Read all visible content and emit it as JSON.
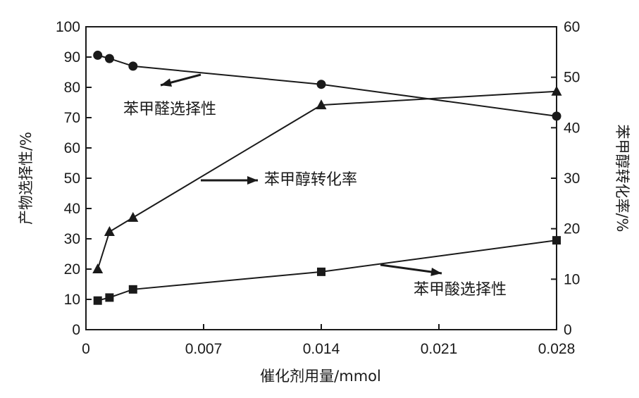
{
  "chart_data": {
    "type": "line",
    "xlabel": "催化剂用量/mmol",
    "ylabel_left": "产物选择性/%",
    "ylabel_right": "苯甲醇转化率/%",
    "x_ticks": [
      "0",
      "0.007",
      "0.014",
      "0.021",
      "0.028"
    ],
    "x_tick_values": [
      0,
      0.007,
      0.014,
      0.021,
      0.028
    ],
    "xlim": [
      0,
      0.028
    ],
    "y_left_ticks": [
      "0",
      "10",
      "20",
      "30",
      "40",
      "50",
      "60",
      "70",
      "80",
      "90",
      "100"
    ],
    "y_left_lim": [
      0,
      100
    ],
    "y_right_ticks": [
      "0",
      "10",
      "20",
      "30",
      "40",
      "50",
      "60"
    ],
    "y_right_lim": [
      0,
      60
    ],
    "grid": false,
    "legend": "none",
    "series": [
      {
        "name": "苯甲醛选择性",
        "axis": "left",
        "marker": "circle",
        "x": [
          0.0007,
          0.0014,
          0.0028,
          0.014,
          0.028
        ],
        "y": [
          90.6,
          89.5,
          87.0,
          81.0,
          70.5
        ]
      },
      {
        "name": "苯甲醇转化率",
        "axis": "right",
        "marker": "triangle",
        "x": [
          0.0007,
          0.0014,
          0.0028,
          0.014,
          0.028
        ],
        "y": [
          12.0,
          19.4,
          22.2,
          44.5,
          47.2
        ]
      },
      {
        "name": "苯甲酸选择性",
        "axis": "left",
        "marker": "square",
        "x": [
          0.0007,
          0.0014,
          0.0028,
          0.014,
          0.028
        ],
        "y": [
          9.6,
          10.6,
          13.3,
          19.1,
          29.5
        ]
      }
    ],
    "annotations": [
      {
        "text": "苯甲醛选择性",
        "series": 0
      },
      {
        "text": "苯甲醇转化率",
        "series": 1
      },
      {
        "text": "苯甲酸选择性",
        "series": 2
      }
    ]
  }
}
